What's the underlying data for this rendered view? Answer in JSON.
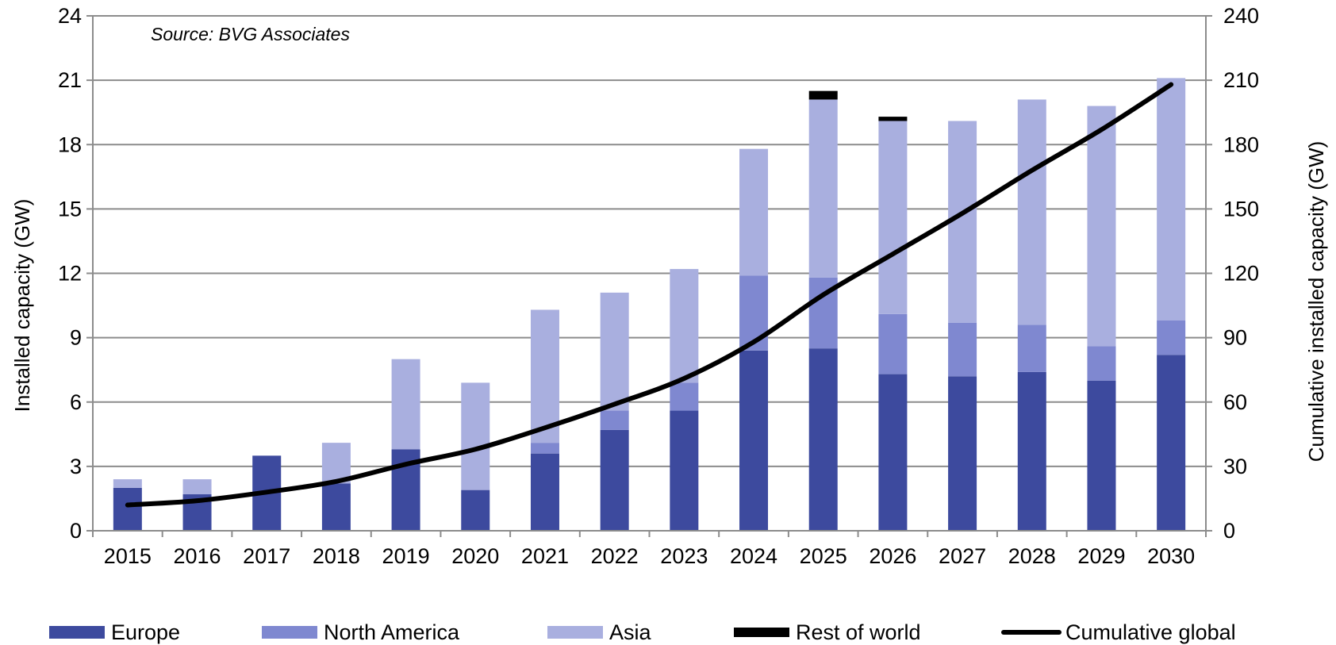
{
  "colors": {
    "europe": "#3D4A9E",
    "north_america": "#7F88D0",
    "asia": "#A9AFDF",
    "rest_of_world": "#000000",
    "cumulative": "#000000",
    "grid": "#8C8C8C"
  },
  "chart_data": {
    "type": "bar",
    "stacked": true,
    "annotation": "Source: BVG Associates",
    "ylabel_left": "Installed capacity (GW)",
    "ylabel_right": "Cumulative installed capacity (GW)",
    "ylim_left": [
      0,
      24
    ],
    "ylim_right": [
      0,
      240
    ],
    "yticks_left": [
      0,
      3,
      6,
      9,
      12,
      15,
      18,
      21,
      24
    ],
    "yticks_right": [
      0,
      30,
      60,
      90,
      120,
      150,
      180,
      210,
      240
    ],
    "grid": true,
    "legend_position": "bottom",
    "categories": [
      "2015",
      "2016",
      "2017",
      "2018",
      "2019",
      "2020",
      "2021",
      "2022",
      "2023",
      "2024",
      "2025",
      "2026",
      "2027",
      "2028",
      "2029",
      "2030"
    ],
    "series": [
      {
        "name": "Europe",
        "color_key": "europe",
        "axis": "left",
        "values": [
          2.0,
          1.7,
          3.5,
          2.2,
          3.8,
          1.9,
          3.6,
          4.7,
          5.6,
          8.4,
          8.5,
          7.3,
          7.2,
          7.4,
          7.0,
          8.2
        ]
      },
      {
        "name": "North America",
        "color_key": "north_america",
        "axis": "left",
        "values": [
          0,
          0,
          0,
          0,
          0,
          0,
          0.5,
          0.9,
          1.3,
          3.5,
          3.3,
          2.8,
          2.5,
          2.2,
          1.6,
          1.6
        ]
      },
      {
        "name": "Asia",
        "color_key": "asia",
        "axis": "left",
        "values": [
          0.4,
          0.7,
          0,
          1.9,
          4.2,
          5.0,
          6.2,
          5.5,
          5.3,
          5.9,
          8.3,
          9.0,
          9.4,
          10.5,
          11.2,
          11.3
        ]
      },
      {
        "name": "Rest of world",
        "color_key": "rest_of_world",
        "axis": "left",
        "values": [
          0,
          0,
          0,
          0,
          0,
          0,
          0,
          0,
          0,
          0,
          0.4,
          0.2,
          0,
          0,
          0,
          0
        ]
      },
      {
        "name": "Cumulative global",
        "color_key": "cumulative",
        "axis": "right",
        "kind": "line",
        "values": [
          12,
          14,
          18,
          23,
          31,
          38,
          48,
          59,
          71,
          88,
          110,
          129,
          148,
          168,
          187,
          208
        ]
      }
    ]
  }
}
